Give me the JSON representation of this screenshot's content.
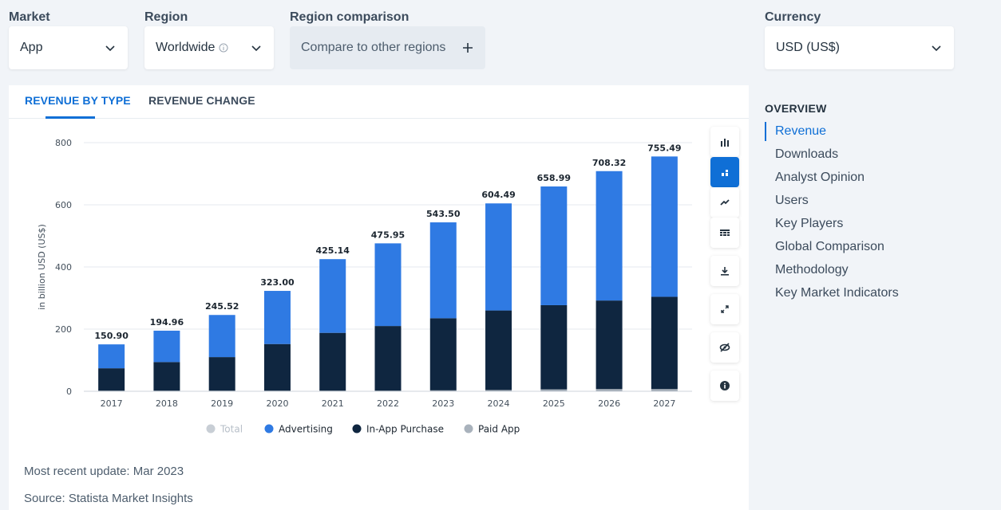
{
  "filters": {
    "market": {
      "label": "Market",
      "value": "App"
    },
    "region": {
      "label": "Region",
      "value": "Worldwide"
    },
    "comparison": {
      "label": "Region comparison",
      "value": "Compare to other regions"
    },
    "currency": {
      "label": "Currency",
      "value": "USD (US$)"
    }
  },
  "tabs": [
    {
      "label": "REVENUE BY TYPE",
      "active": true
    },
    {
      "label": "REVENUE CHANGE",
      "active": false
    }
  ],
  "toolbar": [
    "bar-chart-icon",
    "stacked-bar-icon",
    "trend-icon",
    "table-icon",
    "download-icon",
    "expand-icon",
    "hide-icon",
    "info-icon"
  ],
  "footer": {
    "update": "Most recent update: Mar 2023",
    "source": "Source: Statista Market Insights"
  },
  "sidebar": {
    "title": "OVERVIEW",
    "items": [
      "Revenue",
      "Downloads",
      "Analyst Opinion",
      "Users",
      "Key Players",
      "Global Comparison",
      "Methodology",
      "Key Market Indicators"
    ]
  },
  "colors": {
    "accent": "#0f6fd6",
    "advertising": "#2f7ae3",
    "in_app_purchase": "#0f2640",
    "paid_app": "#a9b2bc",
    "total": "#c8ced5"
  },
  "chart_data": {
    "type": "bar",
    "stacked": true,
    "ylabel": "in billion USD (US$)",
    "ylim": [
      0,
      800
    ],
    "yticks": [
      0,
      200,
      400,
      600,
      800
    ],
    "categories": [
      "2017",
      "2018",
      "2019",
      "2020",
      "2021",
      "2022",
      "2023",
      "2024",
      "2025",
      "2026",
      "2027"
    ],
    "totals": [
      150.9,
      194.96,
      245.52,
      323.0,
      425.14,
      475.95,
      543.5,
      604.49,
      658.99,
      708.32,
      755.49
    ],
    "total_labels": [
      "150.90",
      "194.96",
      "245.52",
      "323.00",
      "425.14",
      "475.95",
      "543.50",
      "604.49",
      "658.99",
      "708.32",
      "755.49"
    ],
    "series": [
      {
        "name": "Paid App",
        "values": [
          2,
          2,
          2,
          2,
          2,
          2,
          3,
          4,
          6,
          7,
          7
        ]
      },
      {
        "name": "In-App Purchase",
        "values": [
          72,
          92,
          108,
          150,
          186,
          208,
          232,
          256,
          271,
          285,
          297
        ]
      },
      {
        "name": "Advertising",
        "values": [
          76.9,
          100.96,
          135.52,
          171.0,
          237.14,
          265.95,
          308.5,
          344.49,
          381.99,
          416.32,
          451.49
        ]
      }
    ],
    "legend": [
      {
        "name": "Total",
        "dimmed": true
      },
      {
        "name": "Advertising",
        "dimmed": false
      },
      {
        "name": "In-App Purchase",
        "dimmed": false
      },
      {
        "name": "Paid App",
        "dimmed": false
      }
    ],
    "legend_position": "bottom",
    "grid": true
  }
}
